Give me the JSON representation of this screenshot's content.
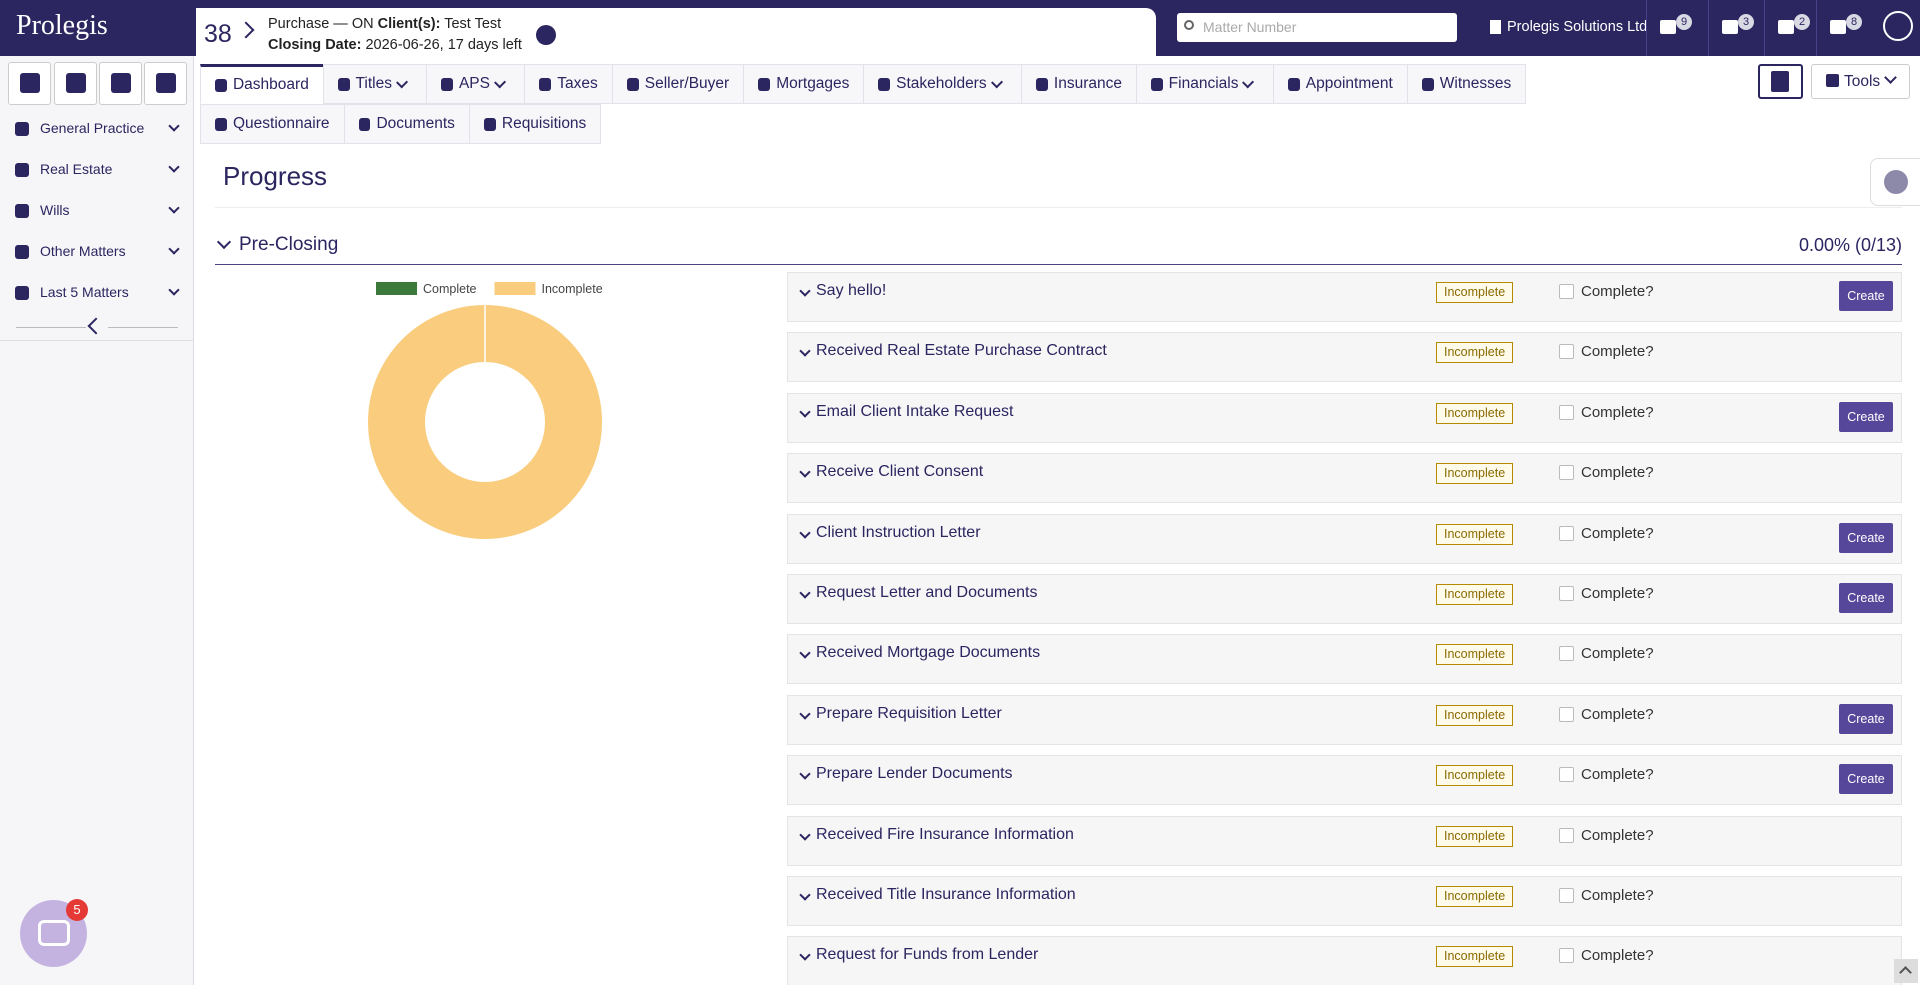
{
  "header": {
    "logo": "Prolegis",
    "matter_number": "38",
    "matter_type": "Purchase — ON",
    "clients_label": "Client(s):",
    "clients": "Test Test",
    "closing_label": "Closing Date:",
    "closing_date": "2026-06-26, 17 days left",
    "search_placeholder": "Matter Number",
    "firm": "Prolegis Solutions Ltd",
    "badges": [
      9,
      3,
      2,
      8
    ]
  },
  "sidebar": {
    "items": [
      "General Practice",
      "Real Estate",
      "Wills",
      "Other Matters",
      "Last 5 Matters"
    ]
  },
  "tabs": {
    "rows": [
      [
        {
          "label": "Dashboard",
          "active": true
        },
        {
          "label": "Titles",
          "dropdown": true
        },
        {
          "label": "APS",
          "dropdown": true
        },
        {
          "label": "Taxes"
        },
        {
          "label": "Seller/Buyer"
        },
        {
          "label": "Mortgages"
        },
        {
          "label": "Stakeholders",
          "dropdown": true
        },
        {
          "label": "Insurance"
        },
        {
          "label": "Financials",
          "dropdown": true
        },
        {
          "label": "Appointment"
        },
        {
          "label": "Witnesses"
        }
      ],
      [
        {
          "label": "Questionnaire"
        },
        {
          "label": "Documents"
        },
        {
          "label": "Requisitions"
        }
      ]
    ],
    "tools": "Tools"
  },
  "page": {
    "title": "Progress",
    "section": "Pre-Closing",
    "progress": "0.00% (0/13)"
  },
  "chart_data": {
    "type": "donut",
    "categories": [
      "Complete",
      "Incomplete"
    ],
    "values": [
      0,
      13
    ],
    "colors": [
      "#3b7a3a",
      "#f9cd7d"
    ]
  },
  "tasks": [
    {
      "title": "Say hello!",
      "status": "Incomplete",
      "check": "Complete?",
      "action": "Create"
    },
    {
      "title": "Received Real Estate Purchase Contract",
      "status": "Incomplete",
      "check": "Complete?"
    },
    {
      "title": "Email Client Intake Request",
      "status": "Incomplete",
      "check": "Complete?",
      "action": "Create"
    },
    {
      "title": "Receive Client Consent",
      "status": "Incomplete",
      "check": "Complete?"
    },
    {
      "title": "Client Instruction Letter",
      "status": "Incomplete",
      "check": "Complete?",
      "action": "Create"
    },
    {
      "title": "Request Letter and Documents",
      "status": "Incomplete",
      "check": "Complete?",
      "action": "Create"
    },
    {
      "title": "Received Mortgage Documents",
      "status": "Incomplete",
      "check": "Complete?"
    },
    {
      "title": "Prepare Requisition Letter",
      "status": "Incomplete",
      "check": "Complete?",
      "action": "Create"
    },
    {
      "title": "Prepare Lender Documents",
      "status": "Incomplete",
      "check": "Complete?",
      "action": "Create"
    },
    {
      "title": "Received Fire Insurance Information",
      "status": "Incomplete",
      "check": "Complete?"
    },
    {
      "title": "Received Title Insurance Information",
      "status": "Incomplete",
      "check": "Complete?"
    },
    {
      "title": "Request for Funds from Lender",
      "status": "Incomplete",
      "check": "Complete?"
    }
  ],
  "chat": {
    "badge": 5
  }
}
